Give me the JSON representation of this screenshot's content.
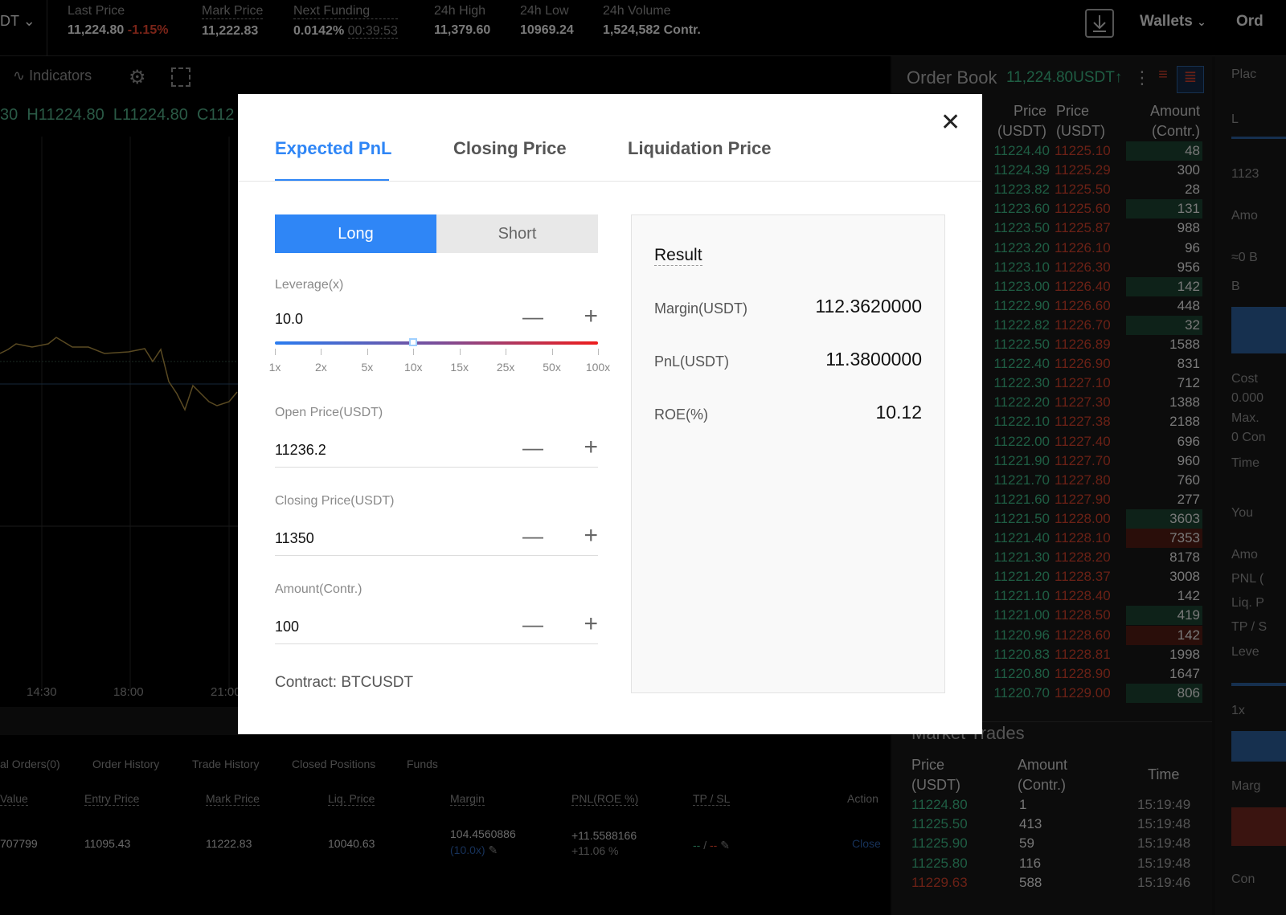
{
  "colors": {
    "accent": "#2f86f6",
    "bid": "#1f5e44",
    "ask": "#6b2116",
    "background": "#0a0a0a"
  },
  "ticker": {
    "symbol": "DT",
    "items": [
      {
        "label": "Last Price",
        "value": "11,224.80",
        "change": "-1.15%"
      },
      {
        "label": "Mark Price",
        "value": "11,222.83"
      },
      {
        "label": "Next Funding",
        "value": "0.0142%",
        "countdown": "00:39:53"
      },
      {
        "label": "24h High",
        "value": "11,379.60"
      },
      {
        "label": "24h Low",
        "value": "10969.24"
      },
      {
        "label": "24h Volume",
        "value": "1,524,582 Contr."
      }
    ],
    "wallets": "Wallets",
    "orders": "Ord",
    "download_icon": "download-icon"
  },
  "chart": {
    "indicators": "Indicators",
    "ohlc": "30  H11224.80  L11224.80  C112",
    "time_labels": [
      "14:30",
      "18:00",
      "21:00"
    ]
  },
  "orderbook": {
    "title": "Order Book",
    "last": "11,224.80USDT",
    "arrow": "↑",
    "headers": {
      "bid": "Price (USDT)",
      "ask": "Price (USDT)",
      "amount": "Amount (Contr.)"
    },
    "bids": [
      "11224.40",
      "11224.39",
      "11223.82",
      "11223.60",
      "11223.50",
      "11223.20",
      "11223.10",
      "11223.00",
      "11222.90",
      "11222.82",
      "11222.50",
      "11222.40",
      "11222.30",
      "11222.20",
      "11222.10",
      "11222.00",
      "11221.90",
      "11221.70",
      "11221.60",
      "11221.50",
      "11221.40",
      "11221.30",
      "11221.20",
      "11221.10",
      "11221.00",
      "11220.96",
      "11220.83",
      "11220.80",
      "11220.70"
    ],
    "asks": [
      "11225.10",
      "11225.29",
      "11225.50",
      "11225.60",
      "11225.87",
      "11226.10",
      "11226.30",
      "11226.40",
      "11226.60",
      "11226.70",
      "11226.89",
      "11226.90",
      "11227.10",
      "11227.30",
      "11227.38",
      "11227.40",
      "11227.70",
      "11227.80",
      "11227.90",
      "11228.00",
      "11228.10",
      "11228.20",
      "11228.37",
      "11228.40",
      "11228.50",
      "11228.60",
      "11228.81",
      "11228.90",
      "11229.00"
    ],
    "amounts": [
      "48",
      "300",
      "28",
      "131",
      "988",
      "96",
      "956",
      "142",
      "448",
      "32",
      "1588",
      "831",
      "712",
      "1388",
      "2188",
      "696",
      "960",
      "760",
      "277",
      "3603",
      "7353",
      "8178",
      "3008",
      "142",
      "419",
      "142",
      "1998",
      "1647",
      "806"
    ],
    "highlight": [
      "g",
      "",
      "",
      "g",
      "",
      "",
      "",
      "g",
      "",
      "g",
      "",
      "",
      "",
      "",
      "",
      "",
      "",
      "",
      "",
      "g",
      "r",
      "",
      "",
      "",
      "g",
      "r",
      "",
      "",
      "g"
    ]
  },
  "trades": {
    "title": "Market Trades",
    "headers": {
      "price": "Price (USDT)",
      "amount": "Amount (Contr.)",
      "time": "Time"
    },
    "rows": [
      {
        "p": "11224.80",
        "a": "1",
        "t": "15:19:49",
        "side": "buy"
      },
      {
        "p": "11225.50",
        "a": "413",
        "t": "15:19:48",
        "side": "buy"
      },
      {
        "p": "11225.90",
        "a": "59",
        "t": "15:19:48",
        "side": "buy"
      },
      {
        "p": "11225.80",
        "a": "116",
        "t": "15:19:48",
        "side": "buy"
      },
      {
        "p": "11229.63",
        "a": "588",
        "t": "15:19:46",
        "side": "sell"
      }
    ]
  },
  "side": {
    "labels": [
      "Plac",
      "L",
      "1123",
      "Amo",
      "≈0 B",
      "B",
      "Cost",
      "0.000",
      "Max.",
      "0 Con",
      "Time",
      "You",
      "Amo",
      "PNL (",
      "Liq. P",
      "TP / S",
      "Leve",
      "1x",
      "1",
      "Marg",
      "Con"
    ]
  },
  "positions": {
    "tabs": [
      "al Orders(0)",
      "Order History",
      "Trade History",
      "Closed Positions",
      "Funds"
    ],
    "headers": [
      "Value",
      "Entry Price",
      "Mark Price",
      "Liq. Price",
      "Margin",
      "PNL(ROE %)",
      "TP / SL",
      "Action"
    ],
    "row": {
      "value": "707799",
      "entry": "11095.43",
      "mark": "11222.83",
      "liq": "10040.63",
      "margin": "104.4560886",
      "lev": "(10.0x)",
      "pnl": "+11.5588166",
      "roe": "+11.06 %",
      "tp": "--",
      "sep": " / ",
      "sl": "--",
      "action": "Close"
    }
  },
  "modal": {
    "tabs": [
      "Expected PnL",
      "Closing Price",
      "Liquidation Price"
    ],
    "active_tab": 0,
    "long": "Long",
    "short": "Short",
    "side_selected": "Long",
    "leverage": {
      "label": "Leverage(x)",
      "value": "10.0",
      "ticks": [
        "1x",
        "2x",
        "5x",
        "10x",
        "15x",
        "25x",
        "50x",
        "100x"
      ],
      "selected": "10x"
    },
    "open": {
      "label": "Open Price(USDT)",
      "value": "11236.2"
    },
    "close": {
      "label": "Closing Price(USDT)",
      "value": "11350"
    },
    "amount": {
      "label": "Amount(Contr.)",
      "value": "100"
    },
    "minus": "—",
    "plus": "+",
    "contract": "Contract: BTCUSDT",
    "result": {
      "title": "Result",
      "margin_label": "Margin(USDT)",
      "margin": "112.3620000",
      "pnl_label": "PnL(USDT)",
      "pnl": "11.3800000",
      "roe_label": "ROE(%)",
      "roe": "10.12"
    }
  }
}
